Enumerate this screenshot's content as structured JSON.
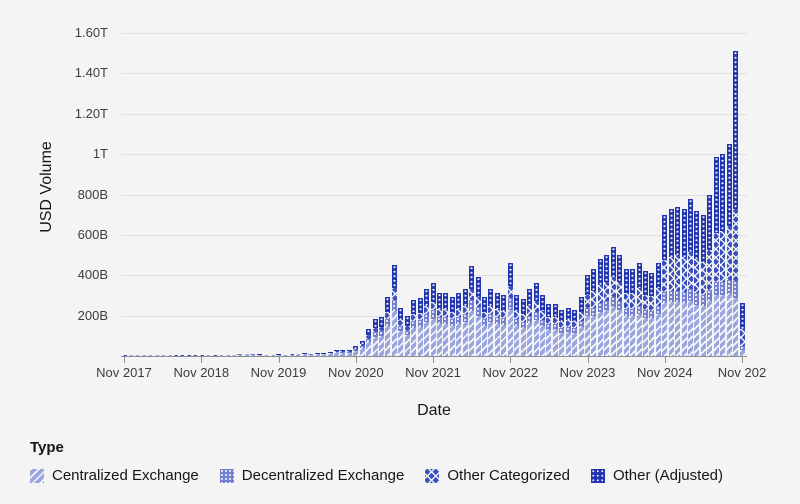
{
  "colors": {
    "background": "#f4f4f4",
    "gridline": "#e0e0e0",
    "axis_line": "#8d8d8d",
    "tick_text": "#3d3d3d",
    "centralized_exchange": "#9aa6de",
    "decentralized_exchange": "#7480cf",
    "other_categorized": "#3c50bd",
    "other_adjusted": "#2135b1"
  },
  "y_axis": {
    "title": "USD Volume",
    "tick_labels": [
      "1.60T",
      "1.40T",
      "1.20T",
      "1T",
      "800B",
      "600B",
      "400B",
      "200B"
    ],
    "tick_values_billions": [
      1600,
      1400,
      1200,
      1000,
      800,
      600,
      400,
      200
    ]
  },
  "x_axis": {
    "title": "Date",
    "tick_labels": [
      "Nov 2017",
      "Nov 2018",
      "Nov 2019",
      "Nov 2020",
      "Nov 2021",
      "Nov 2022",
      "Nov 2023",
      "Nov 2024",
      "Nov 202"
    ]
  },
  "legend": {
    "title": "Type",
    "items": [
      {
        "label": "Centralized Exchange",
        "pattern": "diagonal-stripes",
        "color": "#9aa6de"
      },
      {
        "label": "Decentralized Exchange",
        "pattern": "dot-grid",
        "color": "#7480cf"
      },
      {
        "label": "Other Categorized",
        "pattern": "crosshatch",
        "color": "#3c50bd"
      },
      {
        "label": "Other (Adjusted)",
        "pattern": "dot-grid",
        "color": "#2135b1"
      }
    ]
  },
  "chart_data": {
    "type": "bar",
    "stacked": true,
    "title": "",
    "xlabel": "Date",
    "ylabel": "USD Volume",
    "unit": "billions USD",
    "ylim_billions": [
      0,
      1600
    ],
    "grid": "horizontal",
    "legend_position": "bottom",
    "categories": [
      "Nov 2017",
      "Dec 2017",
      "Jan 2018",
      "Feb 2018",
      "Mar 2018",
      "Apr 2018",
      "May 2018",
      "Jun 2018",
      "Jul 2018",
      "Aug 2018",
      "Sep 2018",
      "Oct 2018",
      "Nov 2018",
      "Dec 2018",
      "Jan 2019",
      "Feb 2019",
      "Mar 2019",
      "Apr 2019",
      "May 2019",
      "Jun 2019",
      "Jul 2019",
      "Aug 2019",
      "Sep 2019",
      "Oct 2019",
      "Nov 2019",
      "Dec 2019",
      "Jan 2020",
      "Feb 2020",
      "Mar 2020",
      "Apr 2020",
      "May 2020",
      "Jun 2020",
      "Jul 2020",
      "Aug 2020",
      "Sep 2020",
      "Oct 2020",
      "Nov 2020",
      "Dec 2020",
      "Jan 2021",
      "Feb 2021",
      "Mar 2021",
      "Apr 2021",
      "May 2021",
      "Jun 2021",
      "Jul 2021",
      "Aug 2021",
      "Sep 2021",
      "Oct 2021",
      "Nov 2021",
      "Dec 2021",
      "Jan 2022",
      "Feb 2022",
      "Mar 2022",
      "Apr 2022",
      "May 2022",
      "Jun 2022",
      "Jul 2022",
      "Aug 2022",
      "Sep 2022",
      "Oct 2022",
      "Nov 2022",
      "Dec 2022",
      "Jan 2023",
      "Feb 2023",
      "Mar 2023",
      "Apr 2023",
      "May 2023",
      "Jun 2023",
      "Jul 2023",
      "Aug 2023",
      "Sep 2023",
      "Oct 2023",
      "Nov 2023",
      "Dec 2023",
      "Jan 2024",
      "Feb 2024",
      "Mar 2024",
      "Apr 2024",
      "May 2024",
      "Jun 2024",
      "Jul 2024",
      "Aug 2024",
      "Sep 2024",
      "Oct 2024",
      "Nov 2024",
      "Dec 2024",
      "Jan 2025",
      "Feb 2025",
      "Mar 2025",
      "Apr 2025",
      "May 2025",
      "Jun 2025",
      "Jul 2025",
      "Aug 2025",
      "Sep 2025",
      "Oct 2025",
      "Nov 2025"
    ],
    "series": [
      {
        "name": "Centralized Exchange",
        "color": "#9aa6de",
        "pattern": "diagonal-stripes",
        "values": [
          2,
          3.5,
          4.2,
          2.8,
          2.8,
          2.8,
          3.5,
          2.8,
          2.1,
          2.1,
          2.1,
          2.1,
          2.1,
          2.8,
          2.1,
          2.8,
          3.5,
          4.9,
          7,
          7.7,
          7,
          5.6,
          4.9,
          4.9,
          5.6,
          4.9,
          6.5,
          7.8,
          9,
          7,
          8.4,
          9,
          13,
          18,
          17,
          17,
          26,
          40,
          70,
          95,
          100,
          148,
          225,
          122,
          102,
          140,
          145,
          168,
          183,
          158,
          158,
          148,
          158,
          168,
          225,
          198,
          148,
          168,
          158,
          153,
          230,
          150,
          140,
          165,
          180,
          150,
          130,
          130,
          115,
          120,
          115,
          145,
          200,
          200,
          220,
          228,
          245,
          228,
          196,
          196,
          210,
          190,
          186,
          210,
          260,
          265,
          265,
          262,
          272,
          255,
          248,
          270,
          300,
          302,
          308,
          285,
          32
        ]
      },
      {
        "name": "Decentralized Exchange",
        "color": "#7480cf",
        "pattern": "dot-grid",
        "values": [
          0.1,
          0.1,
          0.1,
          0.1,
          0.1,
          0.1,
          0.1,
          0.1,
          0.1,
          0.1,
          0.1,
          0.1,
          0.1,
          0.1,
          0.1,
          0.1,
          0.1,
          0.2,
          0.3,
          0.3,
          0.3,
          0.2,
          0.2,
          0.2,
          0.2,
          0.2,
          0.5,
          0.6,
          0.7,
          0.6,
          0.7,
          0.8,
          1.5,
          3,
          3,
          3,
          5,
          8,
          16,
          22,
          23,
          35,
          54,
          29,
          24,
          33,
          34,
          40,
          43,
          37,
          37,
          35,
          37,
          40,
          53,
          47,
          35,
          40,
          37,
          36,
          55,
          33,
          28,
          33,
          36,
          30,
          26,
          26,
          23,
          24,
          23,
          29,
          40,
          40,
          42,
          44,
          48,
          44,
          38,
          38,
          40,
          36,
          35,
          40,
          55,
          57,
          58,
          57,
          60,
          56,
          54,
          58,
          66,
          67,
          70,
          85,
          16
        ]
      },
      {
        "name": "Other Categorized",
        "color": "#3c50bd",
        "pattern": "crosshatch",
        "values": [
          0.3,
          0.4,
          0.5,
          0.3,
          0.3,
          0.3,
          0.4,
          0.3,
          0.2,
          0.2,
          0.2,
          0.2,
          0.2,
          0.3,
          0.2,
          0.3,
          0.4,
          0.5,
          0.7,
          0.8,
          0.7,
          0.6,
          0.5,
          0.5,
          0.6,
          0.5,
          1,
          1.2,
          1.5,
          1.2,
          1.4,
          1.5,
          2.5,
          4,
          4,
          4,
          6,
          9,
          16,
          22,
          23,
          35,
          58,
          29,
          24,
          33,
          34,
          40,
          43,
          37,
          37,
          35,
          37,
          40,
          56,
          47,
          35,
          40,
          37,
          36,
          60,
          42,
          42,
          50,
          54,
          45,
          39,
          39,
          35,
          36,
          35,
          44,
          60,
          80,
          88,
          92,
          100,
          92,
          80,
          80,
          85,
          78,
          76,
          85,
          160,
          170,
          175,
          172,
          185,
          170,
          165,
          195,
          245,
          250,
          268,
          360,
          87
        ]
      },
      {
        "name": "Other (Adjusted)",
        "color": "#2135b1",
        "pattern": "dot-grid",
        "values": [
          0.6,
          1,
          1.2,
          0.8,
          0.8,
          0.8,
          1,
          0.8,
          0.6,
          0.6,
          0.6,
          0.6,
          0.6,
          0.8,
          0.6,
          0.8,
          1,
          1.4,
          2,
          2.2,
          2,
          1.6,
          1.4,
          1.4,
          1.6,
          1.4,
          2,
          2.4,
          2.8,
          2.2,
          2.5,
          2.7,
          5,
          7,
          6,
          6,
          11,
          18,
          33,
          46,
          49,
          72,
          113,
          60,
          50,
          69,
          72,
          82,
          91,
          78,
          78,
          72,
          78,
          82,
          111,
          98,
          72,
          82,
          78,
          75,
          115,
          75,
          70,
          82,
          90,
          75,
          65,
          65,
          57,
          60,
          57,
          72,
          100,
          110,
          130,
          136,
          147,
          136,
          116,
          116,
          125,
          116,
          113,
          125,
          225,
          238,
          242,
          239,
          263,
          239,
          233,
          277,
          374,
          381,
          404,
          780,
          130
        ]
      }
    ]
  }
}
